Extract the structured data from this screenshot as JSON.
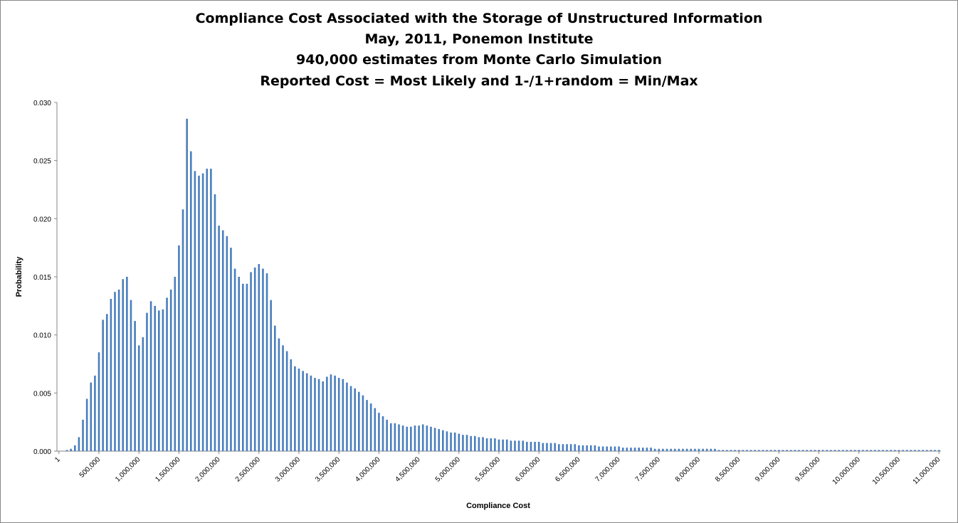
{
  "chart_data": {
    "type": "bar",
    "title": [
      "Compliance Cost Associated with the Storage of Unstructured Information",
      "May, 2011, Ponemon Institute",
      "940,000 estimates from Monte Carlo Simulation",
      "Reported Cost = Most Likely and 1-/1+random = Min/Max"
    ],
    "x_label": "Compliance  Cost",
    "y_label": "Probability",
    "color": "#4a7ebb",
    "ylim": [
      0,
      0.03
    ],
    "yticks": [
      {
        "value": 0,
        "label": "0.000"
      },
      {
        "value": 0.005,
        "label": "0.005"
      },
      {
        "value": 0.01,
        "label": "0.010"
      },
      {
        "value": 0.015,
        "label": "0.015"
      },
      {
        "value": 0.02,
        "label": "0.020"
      },
      {
        "value": 0.025,
        "label": "0.025"
      },
      {
        "value": 0.03,
        "label": "0.030"
      }
    ],
    "categories": [
      "1",
      null,
      null,
      null,
      null,
      null,
      null,
      null,
      null,
      null,
      "500,000",
      null,
      null,
      null,
      null,
      null,
      null,
      null,
      null,
      null,
      "1,000,000",
      null,
      null,
      null,
      null,
      null,
      null,
      null,
      null,
      null,
      "1,500,000",
      null,
      null,
      null,
      null,
      null,
      null,
      null,
      null,
      null,
      "2,000,000",
      null,
      null,
      null,
      null,
      null,
      null,
      null,
      null,
      null,
      "2,500,000",
      null,
      null,
      null,
      null,
      null,
      null,
      null,
      null,
      null,
      "3,000,000",
      null,
      null,
      null,
      null,
      null,
      null,
      null,
      null,
      null,
      "3,500,000",
      null,
      null,
      null,
      null,
      null,
      null,
      null,
      null,
      null,
      "4,000,000",
      null,
      null,
      null,
      null,
      null,
      null,
      null,
      null,
      null,
      "4,500,000",
      null,
      null,
      null,
      null,
      null,
      null,
      null,
      null,
      null,
      "5,000,000",
      null,
      null,
      null,
      null,
      null,
      null,
      null,
      null,
      null,
      "5,500,000",
      null,
      null,
      null,
      null,
      null,
      null,
      null,
      null,
      null,
      "6,000,000",
      null,
      null,
      null,
      null,
      null,
      null,
      null,
      null,
      null,
      "6,500,000",
      null,
      null,
      null,
      null,
      null,
      null,
      null,
      null,
      null,
      "7,000,000",
      null,
      null,
      null,
      null,
      null,
      null,
      null,
      null,
      null,
      "7,500,000",
      null,
      null,
      null,
      null,
      null,
      null,
      null,
      null,
      null,
      "8,000,000",
      null,
      null,
      null,
      null,
      null,
      null,
      null,
      null,
      null,
      "8,500,000",
      null,
      null,
      null,
      null,
      null,
      null,
      null,
      null,
      null,
      "9,000,000",
      null,
      null,
      null,
      null,
      null,
      null,
      null,
      null,
      null,
      "9,500,000",
      null,
      null,
      null,
      null,
      null,
      null,
      null,
      null,
      null,
      "10,000,000",
      null,
      null,
      null,
      null,
      null,
      null,
      null,
      null,
      null,
      "10,500,000",
      null,
      null,
      null,
      null,
      null,
      null,
      null,
      null,
      null,
      "11,000,000"
    ],
    "values": [
      0,
      0,
      0.0001,
      0.0002,
      0.0005,
      0.0012,
      0.0027,
      0.0045,
      0.0059,
      0.0065,
      0.0085,
      0.0113,
      0.0118,
      0.0131,
      0.0137,
      0.0139,
      0.0148,
      0.015,
      0.013,
      0.0112,
      0.0091,
      0.0098,
      0.0119,
      0.0129,
      0.0125,
      0.0121,
      0.0122,
      0.0132,
      0.0139,
      0.015,
      0.0177,
      0.0208,
      0.0286,
      0.0258,
      0.0241,
      0.0237,
      0.0239,
      0.0243,
      0.0243,
      0.0221,
      0.0194,
      0.019,
      0.0185,
      0.0175,
      0.0157,
      0.015,
      0.0144,
      0.0144,
      0.0154,
      0.0158,
      0.0161,
      0.0157,
      0.0153,
      0.013,
      0.0108,
      0.0097,
      0.0091,
      0.0086,
      0.0079,
      0.0073,
      0.0071,
      0.0069,
      0.0067,
      0.0065,
      0.0063,
      0.0062,
      0.006,
      0.0064,
      0.0066,
      0.0065,
      0.0063,
      0.0062,
      0.0059,
      0.0056,
      0.0054,
      0.0051,
      0.0048,
      0.0044,
      0.0041,
      0.0037,
      0.0033,
      0.003,
      0.0027,
      0.0024,
      0.0024,
      0.0023,
      0.0022,
      0.0021,
      0.0021,
      0.0022,
      0.0022,
      0.0023,
      0.0022,
      0.0021,
      0.002,
      0.0019,
      0.0018,
      0.0017,
      0.0016,
      0.0016,
      0.0015,
      0.0014,
      0.0014,
      0.0013,
      0.0013,
      0.0012,
      0.0012,
      0.0011,
      0.0011,
      0.0011,
      0.001,
      0.001,
      0.001,
      0.0009,
      0.0009,
      0.0009,
      0.0009,
      0.0008,
      0.0008,
      0.0008,
      0.0008,
      0.0007,
      0.0007,
      0.0007,
      0.0007,
      0.0006,
      0.0006,
      0.0006,
      0.0006,
      0.0006,
      0.0005,
      0.0005,
      0.0005,
      0.0005,
      0.0005,
      0.0004,
      0.0004,
      0.0004,
      0.0004,
      0.0004,
      0.0004,
      0.0003,
      0.0003,
      0.0003,
      0.0003,
      0.0003,
      0.0003,
      0.0003,
      0.0003,
      0.0002,
      0.0002,
      0.0002,
      0.0002,
      0.0002,
      0.0002,
      0.0002,
      0.0002,
      0.0002,
      0.0002,
      0.0002,
      0.0002,
      0.0002,
      0.0002,
      0.0002,
      0.0002,
      0.0001,
      0.0001,
      0.0001,
      0.0001,
      0.0001,
      0.0001,
      0.0001,
      0.0001,
      0.0001,
      0.0001,
      0.0001,
      0.0001,
      0.0001,
      0.0001,
      0.0001,
      0.0001,
      0.0001,
      0.0001,
      0.0001,
      0.0001,
      0.0001,
      0.0001,
      0.0001,
      0.0001,
      0.0001,
      0.0001,
      0.0001,
      0.0001,
      0.0001,
      0.0001,
      0.0001,
      0.0001,
      0.0001,
      0.0001,
      0.0001,
      0.0001,
      0.0001,
      0.0001,
      0.0001,
      0.0001,
      0.0001,
      0.0001,
      0.0001,
      0.0001,
      0.0001,
      0.0001,
      0.0001,
      0.0001,
      0.0001,
      0.0001,
      0.0001,
      0.0001,
      0.0001,
      0.0001,
      0.0001,
      0.0001
    ]
  }
}
